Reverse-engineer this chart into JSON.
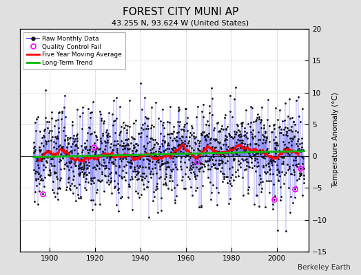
{
  "title": "FOREST CITY MUNI AP",
  "subtitle": "43.255 N, 93.624 W (United States)",
  "ylabel": "Temperature Anomaly (°C)",
  "watermark": "Berkeley Earth",
  "xlim": [
    1887,
    2014
  ],
  "ylim": [
    -15,
    20
  ],
  "yticks": [
    -15,
    -10,
    -5,
    0,
    5,
    10,
    15,
    20
  ],
  "xticks": [
    1900,
    1920,
    1940,
    1960,
    1980,
    2000
  ],
  "start_year": 1893,
  "end_year": 2012,
  "bg_color": "#e0e0e0",
  "plot_bg_color": "#ffffff",
  "raw_line_color": "#4444ff",
  "raw_dot_color": "#111111",
  "moving_avg_color": "#ff0000",
  "trend_color": "#00bb00",
  "qc_fail_color": "#ff00ff",
  "noise_std": 3.5,
  "seed": 77
}
